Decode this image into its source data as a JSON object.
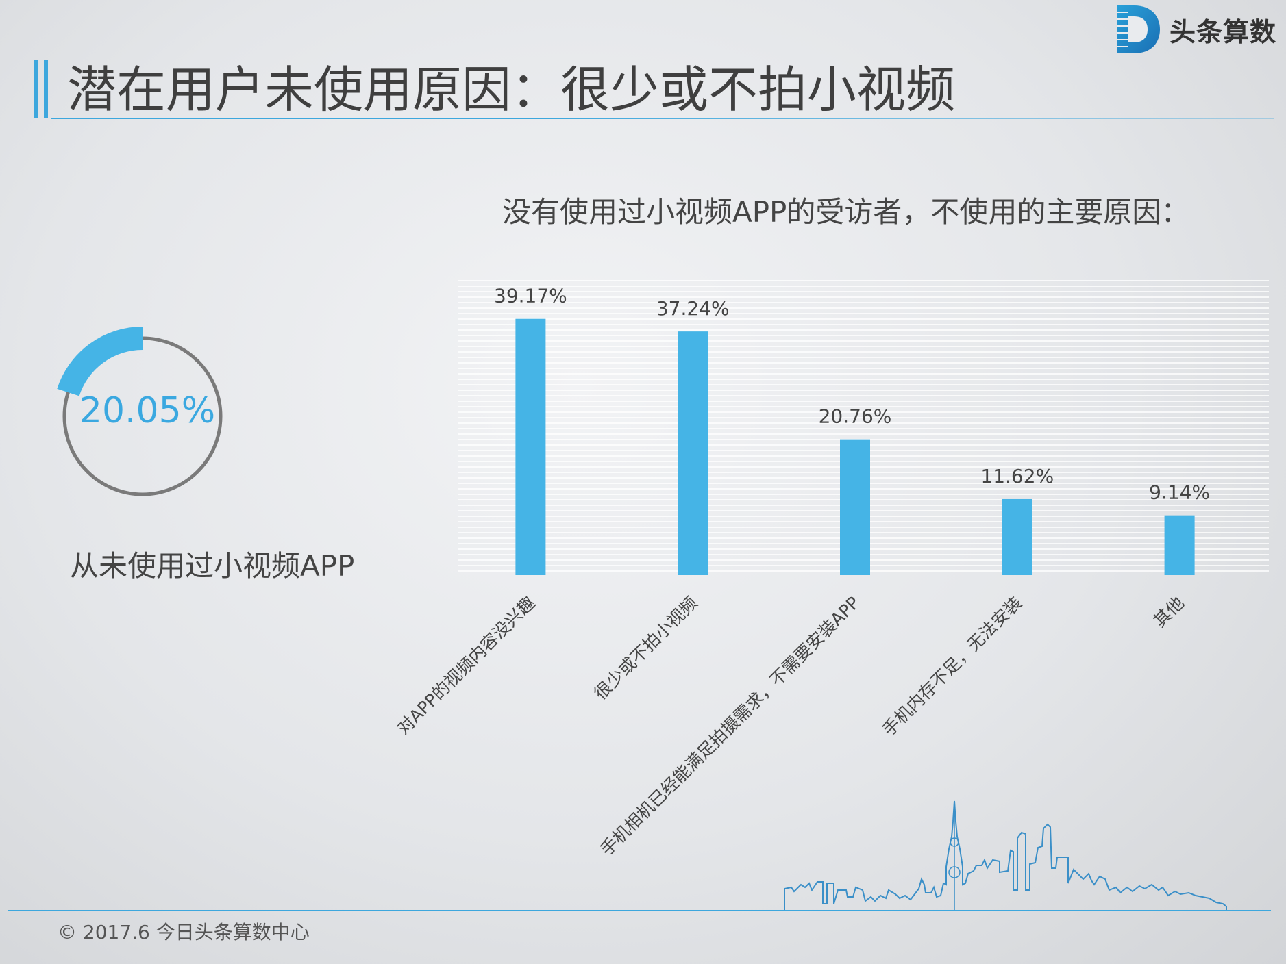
{
  "brand": {
    "name": "头条算数",
    "logo_icon": "d-logo-icon"
  },
  "page_title": "潜在用户未使用原因：很少或不拍小视频",
  "summary": {
    "value": "20.05%",
    "fraction": 0.2005,
    "caption": "从未使用过小视频APP"
  },
  "chart_title": "没有使用过小视频APP的受访者，不使用的主要原因：",
  "chart_data": {
    "type": "bar",
    "title": "没有使用过小视频APP的受访者，不使用的主要原因：",
    "categories": [
      "对APP的视频内容没兴趣",
      "很少或不拍小视频",
      "手机相机已经能满足拍摄需求，不需要安装APP",
      "手机内存不足，无法安装",
      "其他"
    ],
    "values": [
      39.17,
      37.24,
      20.76,
      11.62,
      9.14
    ],
    "labels": [
      "39.17%",
      "37.24%",
      "20.76%",
      "11.62%",
      "9.14%"
    ],
    "ylim": [
      0,
      45
    ],
    "grid": true,
    "bar_color": "#45b4e6"
  },
  "footer": {
    "copyright": "© 2017.6 今日头条算数中心"
  },
  "colors": {
    "accent": "#3da7dd",
    "bar": "#45b4e6",
    "ring": "#7a7a7a"
  }
}
